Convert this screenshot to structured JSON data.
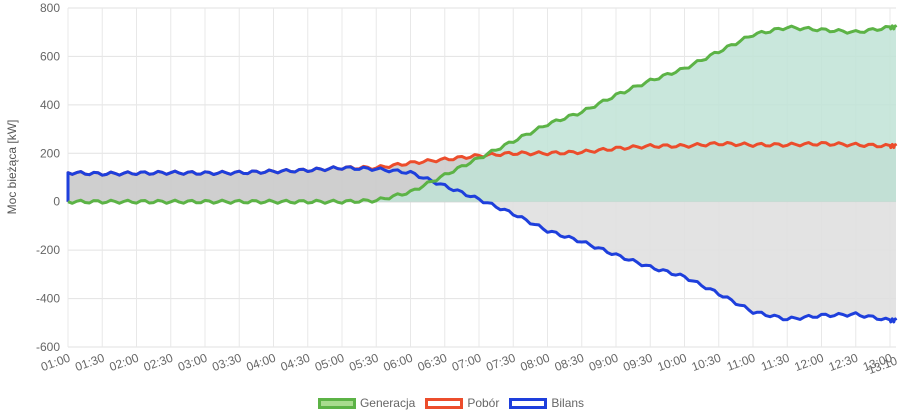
{
  "chart_data": {
    "type": "line",
    "ylabel": "Moc bieżąca [kW]",
    "ylim": [
      -600,
      800
    ],
    "yticks": [
      800,
      600,
      400,
      200,
      0,
      -200,
      -400,
      -600
    ],
    "categories": [
      "01:00",
      "01:30",
      "02:00",
      "02:30",
      "03:00",
      "03:30",
      "04:00",
      "04:30",
      "05:00",
      "05:30",
      "06:00",
      "06:30",
      "07:00",
      "07:30",
      "08:00",
      "08:30",
      "09:00",
      "09:30",
      "10:00",
      "10:30",
      "11:00",
      "11:30",
      "12:00",
      "12:30",
      "13:00"
    ],
    "last_tick": "13:10",
    "grid": true,
    "legend_position": "bottom",
    "series": [
      {
        "name": "Generacja",
        "color": "#5cb346",
        "fill": "#bfe3d6",
        "values": [
          0,
          0,
          0,
          0,
          0,
          0,
          0,
          0,
          0,
          5,
          40,
          110,
          180,
          250,
          320,
          370,
          440,
          500,
          550,
          620,
          690,
          720,
          710,
          700,
          720
        ]
      },
      {
        "name": "Pobór",
        "color": "#ec4d2c",
        "fill": "#cccccc",
        "values": [
          120,
          115,
          118,
          120,
          118,
          120,
          125,
          130,
          140,
          140,
          160,
          175,
          190,
          200,
          200,
          205,
          220,
          230,
          230,
          240,
          235,
          235,
          240,
          235,
          230
        ]
      },
      {
        "name": "Bilans",
        "color": "#1e3fdc",
        "fill": "#e0e0e0",
        "values": [
          120,
          115,
          118,
          120,
          118,
          120,
          125,
          130,
          140,
          135,
          120,
          65,
          10,
          -50,
          -120,
          -165,
          -220,
          -270,
          -310,
          -380,
          -455,
          -485,
          -470,
          -465,
          -490
        ]
      }
    ]
  }
}
